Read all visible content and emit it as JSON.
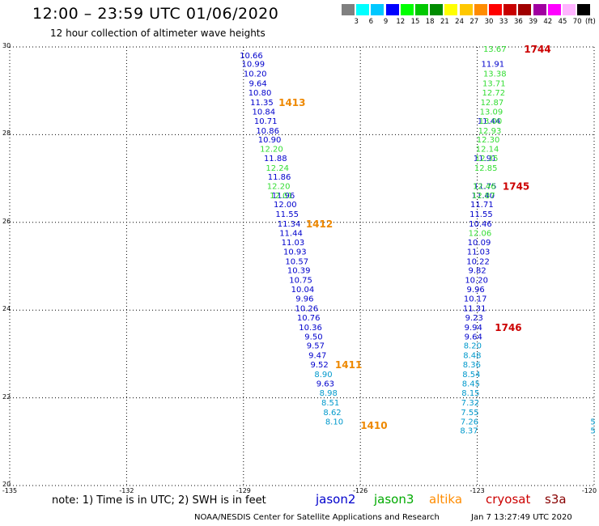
{
  "title": "12:00 – 23:59 UTC 01/06/2020",
  "subtitle": "12 hour collection of altimeter wave heights",
  "color_scale": {
    "unit": "(ft)",
    "colors": [
      "#808080",
      "#00ffff",
      "#00c8ff",
      "#0000ff",
      "#00ff00",
      "#00c800",
      "#008c00",
      "#ffff00",
      "#ffc800",
      "#ff8c00",
      "#ff0000",
      "#c80000",
      "#a00000",
      "#a000a0",
      "#ff00ff",
      "#ffb4ff",
      "#000000"
    ],
    "labels": [
      "3",
      "6",
      "9",
      "12",
      "15",
      "18",
      "21",
      "24",
      "27",
      "30",
      "33",
      "36",
      "39",
      "42",
      "45",
      "70"
    ]
  },
  "footer": {
    "note": "note:  1) Time is in UTC; 2) SWH is in feet",
    "satellites": [
      {
        "name": "jason2",
        "color": "#0000cc"
      },
      {
        "name": "jason3",
        "color": "#00aa00"
      },
      {
        "name": "altika",
        "color": "#ff8c00"
      },
      {
        "name": "cryosat",
        "color": "#cc0000"
      },
      {
        "name": "s3a",
        "color": "#880000"
      }
    ],
    "credit": "NOAA/NESDIS Center for Satellite Applications and Research",
    "generated": "Jan  7 13:27:49 UTC 2020"
  },
  "chart_data": {
    "type": "scatter",
    "title": "12:00 – 23:59 UTC 01/06/2020",
    "subtitle": "12 hour collection of altimeter wave heights",
    "xlabel": "",
    "ylabel": "",
    "xlim": [
      -135,
      -120
    ],
    "ylim": [
      20,
      30
    ],
    "xticks": [
      "-135",
      "-132",
      "-129",
      "-126",
      "-123",
      "-120"
    ],
    "yticks": [
      "20",
      "22",
      "24",
      "26",
      "28",
      "30"
    ],
    "grid": true,
    "series": [
      {
        "name": "jason2",
        "color": "#0000cc",
        "points": [
          {
            "x": -128.8,
            "y": 29.82,
            "label": "10.66"
          },
          {
            "x": -128.75,
            "y": 29.62,
            "label": "10.99"
          },
          {
            "x": -128.7,
            "y": 29.4,
            "label": "10.20"
          },
          {
            "x": -128.63,
            "y": 29.18,
            "label": "9.64"
          },
          {
            "x": -128.58,
            "y": 28.97,
            "label": "10.80"
          },
          {
            "x": -128.53,
            "y": 28.75,
            "label": "11.35"
          },
          {
            "x": -128.48,
            "y": 28.53,
            "label": "10.84"
          },
          {
            "x": -128.43,
            "y": 28.32,
            "label": "10.71"
          },
          {
            "x": -128.38,
            "y": 28.1,
            "label": "10.86"
          },
          {
            "x": -128.33,
            "y": 27.9,
            "label": "10.90"
          },
          {
            "x": -128.18,
            "y": 27.47,
            "label": "11.88"
          },
          {
            "x": -128.08,
            "y": 27.05,
            "label": "11.86"
          },
          {
            "x": -127.98,
            "y": 26.62,
            "label": "11.96"
          },
          {
            "x": -127.93,
            "y": 26.42,
            "label": "12.00"
          },
          {
            "x": -127.88,
            "y": 26.2,
            "label": "11.55"
          },
          {
            "x": -127.83,
            "y": 25.98,
            "label": "11.34"
          },
          {
            "x": -127.78,
            "y": 25.77,
            "label": "11.44"
          },
          {
            "x": -127.73,
            "y": 25.55,
            "label": "11.03"
          },
          {
            "x": -127.68,
            "y": 25.34,
            "label": "10.93"
          },
          {
            "x": -127.63,
            "y": 25.12,
            "label": "10.57"
          },
          {
            "x": -127.58,
            "y": 24.92,
            "label": "10.39"
          },
          {
            "x": -127.53,
            "y": 24.7,
            "label": "10.75"
          },
          {
            "x": -127.48,
            "y": 24.48,
            "label": "10.04"
          },
          {
            "x": -127.43,
            "y": 24.27,
            "label": "9.96"
          },
          {
            "x": -127.38,
            "y": 24.05,
            "label": "10.26"
          },
          {
            "x": -127.33,
            "y": 23.84,
            "label": "10.76"
          },
          {
            "x": -127.28,
            "y": 23.62,
            "label": "10.36"
          },
          {
            "x": -127.2,
            "y": 23.4,
            "label": "9.50"
          },
          {
            "x": -127.15,
            "y": 23.2,
            "label": "9.57"
          },
          {
            "x": -127.1,
            "y": 22.98,
            "label": "9.47"
          },
          {
            "x": -127.05,
            "y": 22.77,
            "label": "9.52"
          },
          {
            "x": -126.9,
            "y": 22.33,
            "label": "9.63"
          },
          {
            "x": -122.6,
            "y": 29.62,
            "label": "11.91"
          },
          {
            "x": -122.7,
            "y": 28.32,
            "label": "11.44"
          },
          {
            "x": -122.8,
            "y": 27.47,
            "label": "11.91"
          },
          {
            "x": -122.8,
            "y": 26.84,
            "label": "11.75"
          },
          {
            "x": -122.85,
            "y": 26.62,
            "label": "11.40"
          },
          {
            "x": -122.88,
            "y": 26.42,
            "label": "11.71"
          },
          {
            "x": -122.9,
            "y": 26.2,
            "label": "11.55"
          },
          {
            "x": -122.92,
            "y": 25.98,
            "label": "10.46"
          },
          {
            "x": -122.95,
            "y": 25.55,
            "label": "10.09"
          },
          {
            "x": -122.97,
            "y": 25.34,
            "label": "11.03"
          },
          {
            "x": -122.98,
            "y": 25.12,
            "label": "10.22"
          },
          {
            "x": -123.0,
            "y": 24.92,
            "label": "9.82"
          },
          {
            "x": -123.02,
            "y": 24.7,
            "label": "10.20"
          },
          {
            "x": -123.04,
            "y": 24.48,
            "label": "9.96"
          },
          {
            "x": -123.05,
            "y": 24.27,
            "label": "10.17"
          },
          {
            "x": -123.07,
            "y": 24.05,
            "label": "11.31"
          },
          {
            "x": -123.08,
            "y": 23.84,
            "label": "9.23"
          },
          {
            "x": -123.1,
            "y": 23.62,
            "label": "9.94"
          },
          {
            "x": -123.1,
            "y": 23.4,
            "label": "9.64"
          }
        ]
      },
      {
        "name": "jason3",
        "color": "#33dd33",
        "points": [
          {
            "x": -122.55,
            "y": 29.96,
            "label": "13.67"
          },
          {
            "x": -122.55,
            "y": 29.4,
            "label": "13.38"
          },
          {
            "x": -122.57,
            "y": 29.18,
            "label": "13.71"
          },
          {
            "x": -122.58,
            "y": 28.97,
            "label": "12.72"
          },
          {
            "x": -122.62,
            "y": 28.75,
            "label": "12.87"
          },
          {
            "x": -122.64,
            "y": 28.53,
            "label": "13.09"
          },
          {
            "x": -122.66,
            "y": 28.32,
            "label": "13.00"
          },
          {
            "x": -122.68,
            "y": 28.1,
            "label": "12.93"
          },
          {
            "x": -122.72,
            "y": 27.9,
            "label": "12.30"
          },
          {
            "x": -122.74,
            "y": 27.68,
            "label": "12.14"
          },
          {
            "x": -122.76,
            "y": 27.47,
            "label": "12.35"
          },
          {
            "x": -122.78,
            "y": 27.25,
            "label": "12.85"
          },
          {
            "x": -122.82,
            "y": 26.84,
            "label": "12.46"
          },
          {
            "x": -122.84,
            "y": 26.62,
            "label": "12.87"
          },
          {
            "x": -128.28,
            "y": 27.68,
            "label": "12.20"
          },
          {
            "x": -128.13,
            "y": 27.25,
            "label": "12.24"
          },
          {
            "x": -128.1,
            "y": 26.84,
            "label": "12.20"
          },
          {
            "x": -128.03,
            "y": 26.62,
            "label": "12.01"
          },
          {
            "x": -122.93,
            "y": 25.77,
            "label": "12.06"
          }
        ]
      },
      {
        "name": "cryosat",
        "color": "#0099cc",
        "points": [
          {
            "x": -126.95,
            "y": 22.55,
            "label": "8.90"
          },
          {
            "x": -126.82,
            "y": 22.12,
            "label": "8.98"
          },
          {
            "x": -126.77,
            "y": 21.9,
            "label": "8.51"
          },
          {
            "x": -126.72,
            "y": 21.68,
            "label": "8.62"
          },
          {
            "x": -126.67,
            "y": 21.47,
            "label": "8.10"
          },
          {
            "x": -123.12,
            "y": 23.2,
            "label": "8.20"
          },
          {
            "x": -123.13,
            "y": 22.98,
            "label": "8.48"
          },
          {
            "x": -123.14,
            "y": 22.77,
            "label": "8.36"
          },
          {
            "x": -123.15,
            "y": 22.55,
            "label": "8.54"
          },
          {
            "x": -123.16,
            "y": 22.33,
            "label": "8.45"
          },
          {
            "x": -123.17,
            "y": 22.12,
            "label": "8.15"
          },
          {
            "x": -123.18,
            "y": 21.9,
            "label": "7.32"
          },
          {
            "x": -123.19,
            "y": 21.68,
            "label": "7.55"
          },
          {
            "x": -123.2,
            "y": 21.47,
            "label": "7.26"
          },
          {
            "x": -123.21,
            "y": 21.26,
            "label": "8.37"
          },
          {
            "x": -120.03,
            "y": 21.47,
            "label": "5"
          },
          {
            "x": -120.03,
            "y": 21.26,
            "label": "5"
          }
        ]
      }
    ],
    "annotations": [
      {
        "text": "1413",
        "x": -128.1,
        "y": 28.75,
        "color": "#ee8800"
      },
      {
        "text": "1412",
        "x": -127.4,
        "y": 25.98,
        "color": "#ee8800"
      },
      {
        "text": "1411",
        "x": -126.65,
        "y": 22.77,
        "color": "#ee8800"
      },
      {
        "text": "1410",
        "x": -126.0,
        "y": 21.38,
        "color": "#ee8800"
      },
      {
        "text": "1744",
        "x": -121.8,
        "y": 29.96,
        "color": "#cc0000"
      },
      {
        "text": "1745",
        "x": -122.35,
        "y": 26.84,
        "color": "#cc0000"
      },
      {
        "text": "1746",
        "x": -122.55,
        "y": 23.62,
        "color": "#cc0000"
      }
    ]
  }
}
